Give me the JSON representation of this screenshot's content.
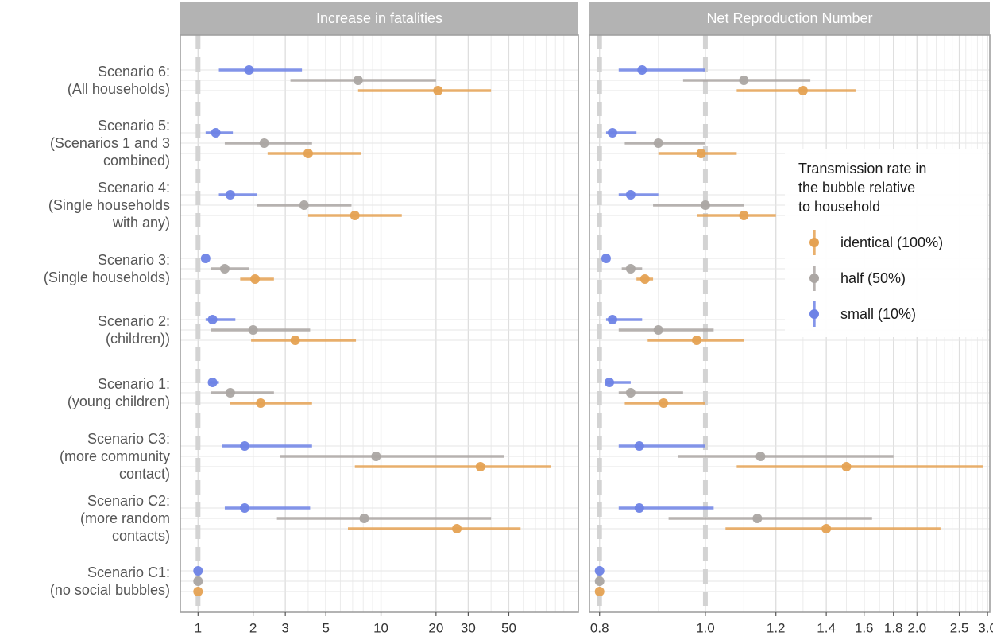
{
  "chart_data": {
    "type": "forest",
    "categories": [
      "Scenario 6:\n(All households)",
      "Scenario 5:\n(Scenarios 1 and 3\ncombined)",
      "Scenario 4:\n(Single households\nwith any)",
      "Scenario 3:\n(Single households)",
      "Scenario 2:\n(children))",
      "Scenario 1:\n(young children)",
      "Scenario C3:\n(more community\ncontact)",
      "Scenario C2:\n(more random\ncontacts)",
      "Scenario C1:\n(no social bubbles)"
    ],
    "legend": {
      "title": "Transmission rate in\nthe bubble relative\nto household",
      "position": "right",
      "entries": [
        {
          "key": "identical",
          "label": "identical (100%)",
          "color": "#E5A253"
        },
        {
          "key": "half",
          "label": "half (50%)",
          "color": "#ABA6A3"
        },
        {
          "key": "small",
          "label": "small (10%)",
          "color": "#6E83E6"
        }
      ]
    },
    "panels": [
      {
        "title": "Increase in fatalities",
        "scale": "log",
        "xlim": [
          0.8,
          120
        ],
        "ticks": [
          1,
          2,
          3,
          5,
          10,
          20,
          30,
          50
        ],
        "tick_labels": [
          "1",
          "2",
          "3",
          "5",
          "10",
          "20",
          "30",
          "50"
        ],
        "reference_lines": [
          1
        ],
        "grid": true,
        "series": [
          {
            "name": "identical",
            "values": [
              {
                "est": 20.5,
                "lo": 7.5,
                "hi": 40
              },
              {
                "est": 4,
                "lo": 2.4,
                "hi": 7.8
              },
              {
                "est": 7.2,
                "lo": 4,
                "hi": 13
              },
              {
                "est": 2.05,
                "lo": 1.7,
                "hi": 2.6
              },
              {
                "est": 3.4,
                "lo": 1.95,
                "hi": 7.3
              },
              {
                "est": 2.2,
                "lo": 1.5,
                "hi": 4.2
              },
              {
                "est": 35,
                "lo": 7.2,
                "hi": 85
              },
              {
                "est": 26,
                "lo": 6.6,
                "hi": 58
              },
              {
                "est": 1,
                "lo": 1,
                "hi": 1
              }
            ]
          },
          {
            "name": "half",
            "values": [
              {
                "est": 7.5,
                "lo": 3.2,
                "hi": 20
              },
              {
                "est": 2.3,
                "lo": 1.4,
                "hi": 4.2
              },
              {
                "est": 3.8,
                "lo": 2.1,
                "hi": 6.9
              },
              {
                "est": 1.4,
                "lo": 1.18,
                "hi": 1.9
              },
              {
                "est": 2,
                "lo": 1.18,
                "hi": 4.1
              },
              {
                "est": 1.5,
                "lo": 1.18,
                "hi": 2.6
              },
              {
                "est": 9.4,
                "lo": 2.8,
                "hi": 47
              },
              {
                "est": 8.1,
                "lo": 2.7,
                "hi": 40
              },
              {
                "est": 1,
                "lo": 1,
                "hi": 1
              }
            ]
          },
          {
            "name": "small",
            "values": [
              {
                "est": 1.9,
                "lo": 1.3,
                "hi": 3.7
              },
              {
                "est": 1.25,
                "lo": 1.1,
                "hi": 1.55
              },
              {
                "est": 1.5,
                "lo": 1.3,
                "hi": 2.1
              },
              {
                "est": 1.1,
                "lo": 1.1,
                "hi": 1.1
              },
              {
                "est": 1.2,
                "lo": 1.1,
                "hi": 1.6
              },
              {
                "est": 1.2,
                "lo": 1.15,
                "hi": 1.3
              },
              {
                "est": 1.8,
                "lo": 1.35,
                "hi": 4.2
              },
              {
                "est": 1.8,
                "lo": 1.4,
                "hi": 4.1
              },
              {
                "est": 1,
                "lo": 1,
                "hi": 1
              }
            ]
          }
        ]
      },
      {
        "title": "Net Reproduction Number",
        "scale": "reciprocal",
        "xlim": [
          0.785,
          3.05
        ],
        "ticks": [
          0.8,
          1.0,
          1.2,
          1.4,
          1.6,
          1.8,
          2.0,
          2.5,
          3.0
        ],
        "tick_labels": [
          "0.8",
          "1.0",
          "1.2",
          "1.4",
          "1.6",
          "1.8",
          "2.0",
          "2.5",
          "3.0"
        ],
        "reference_lines": [
          0.8,
          1.0
        ],
        "grid": true,
        "series": [
          {
            "name": "identical",
            "values": [
              {
                "est": 1.3,
                "lo": 1.08,
                "hi": 1.55
              },
              {
                "est": 0.99,
                "lo": 0.9,
                "hi": 1.08
              },
              {
                "est": 1.1,
                "lo": 0.98,
                "hi": 1.2
              },
              {
                "est": 0.875,
                "lo": 0.86,
                "hi": 0.89
              },
              {
                "est": 0.98,
                "lo": 0.88,
                "hi": 1.1
              },
              {
                "est": 0.91,
                "lo": 0.84,
                "hi": 1.0
              },
              {
                "est": 1.5,
                "lo": 1.08,
                "hi": 2.9
              },
              {
                "est": 1.4,
                "lo": 1.05,
                "hi": 2.25
              },
              {
                "est": 0.8,
                "lo": 0.8,
                "hi": 0.8
              }
            ]
          },
          {
            "name": "half",
            "values": [
              {
                "est": 1.1,
                "lo": 0.95,
                "hi": 1.33
              },
              {
                "est": 0.9,
                "lo": 0.84,
                "hi": 1.0
              },
              {
                "est": 1.0,
                "lo": 0.89,
                "hi": 1.1
              },
              {
                "est": 0.85,
                "lo": 0.835,
                "hi": 0.87
              },
              {
                "est": 0.9,
                "lo": 0.83,
                "hi": 1.02
              },
              {
                "est": 0.85,
                "lo": 0.83,
                "hi": 0.95
              },
              {
                "est": 1.15,
                "lo": 0.94,
                "hi": 1.8
              },
              {
                "est": 1.14,
                "lo": 0.92,
                "hi": 1.65
              },
              {
                "est": 0.8,
                "lo": 0.8,
                "hi": 0.8
              }
            ]
          },
          {
            "name": "small",
            "values": [
              {
                "est": 0.87,
                "lo": 0.83,
                "hi": 1.0
              },
              {
                "est": 0.82,
                "lo": 0.81,
                "hi": 0.86
              },
              {
                "est": 0.85,
                "lo": 0.83,
                "hi": 0.9
              },
              {
                "est": 0.81,
                "lo": 0.81,
                "hi": 0.81
              },
              {
                "est": 0.82,
                "lo": 0.81,
                "hi": 0.87
              },
              {
                "est": 0.815,
                "lo": 0.81,
                "hi": 0.85
              },
              {
                "est": 0.865,
                "lo": 0.83,
                "hi": 1.0
              },
              {
                "est": 0.865,
                "lo": 0.83,
                "hi": 1.02
              },
              {
                "est": 0.8,
                "lo": 0.8,
                "hi": 0.8
              }
            ]
          }
        ]
      }
    ]
  }
}
